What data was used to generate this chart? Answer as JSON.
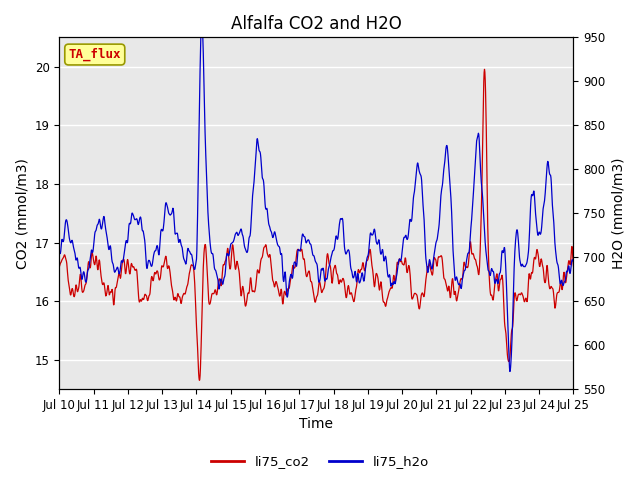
{
  "title": "Alfalfa CO2 and H2O",
  "xlabel": "Time",
  "ylabel_left": "CO2 (mmol/m3)",
  "ylabel_right": "H2O (mmol/m3)",
  "co2_ylim": [
    14.5,
    20.5
  ],
  "h2o_ylim": [
    550,
    950
  ],
  "x_tick_labels": [
    "Jul 10",
    "Jul 11",
    "Jul 12",
    "Jul 13",
    "Jul 14",
    "Jul 15",
    "Jul 16",
    "Jul 17",
    "Jul 18",
    "Jul 19",
    "Jul 20",
    "Jul 21",
    "Jul 22",
    "Jul 23",
    "Jul 24",
    "Jul 25"
  ],
  "co2_color": "#cc0000",
  "h2o_color": "#0000cc",
  "legend_co2": "li75_co2",
  "legend_h2o": "li75_h2o",
  "annotation_text": "TA_flux",
  "annotation_bg": "#ffff99",
  "annotation_border": "#999900",
  "plot_bg_color": "#e8e8e8",
  "grid_color": "white",
  "title_fontsize": 12,
  "axis_fontsize": 10,
  "tick_fontsize": 8.5
}
